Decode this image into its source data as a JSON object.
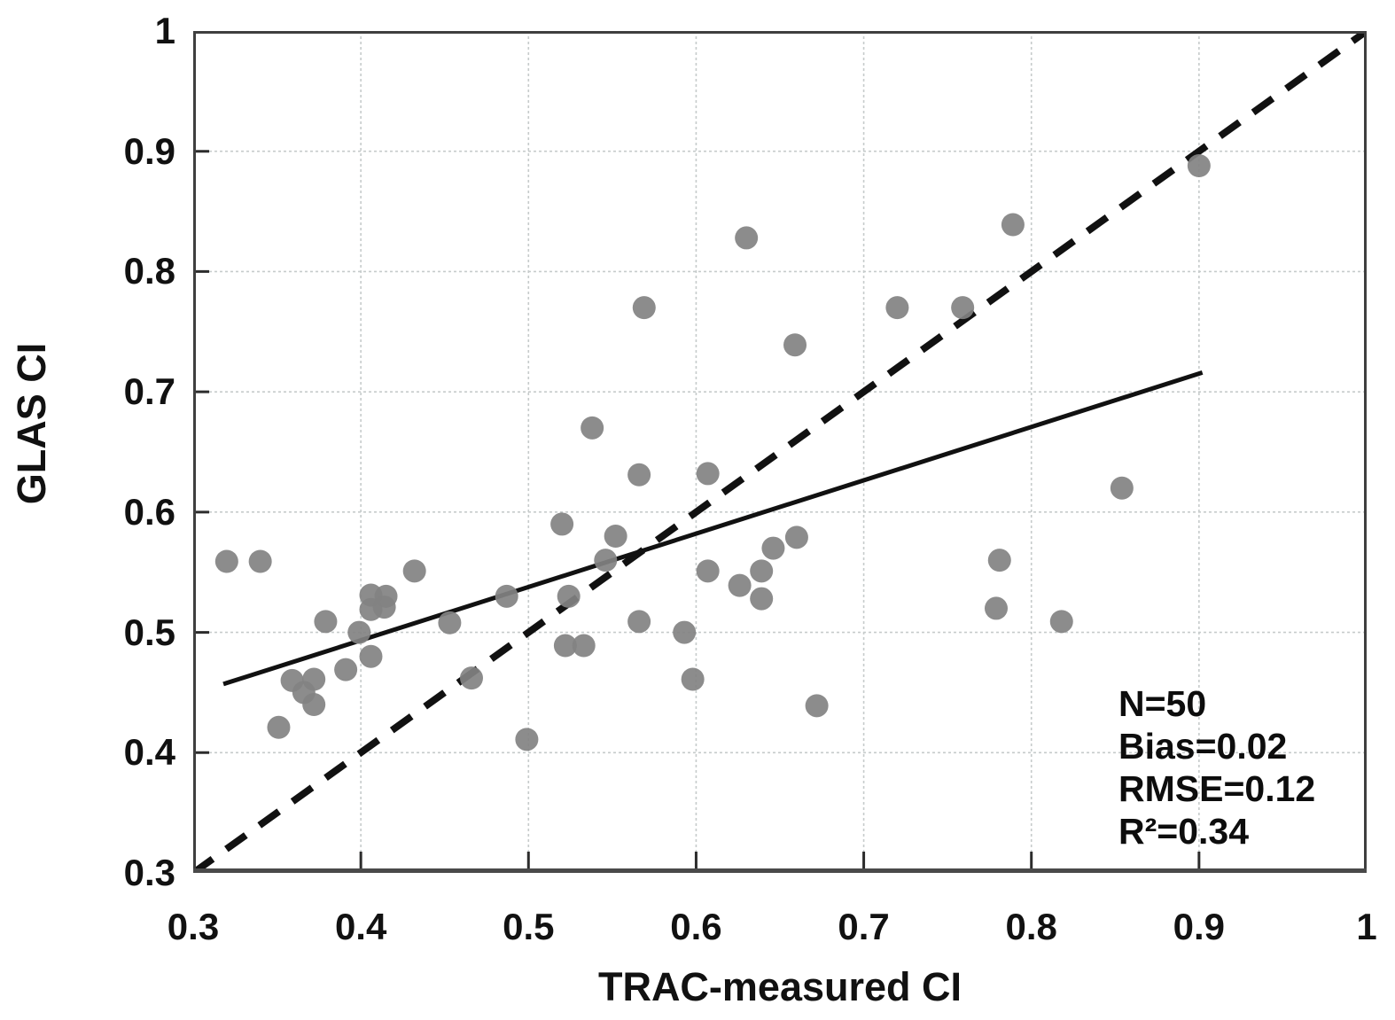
{
  "chart_data": {
    "type": "scatter",
    "xlabel": "TRAC-measured CI",
    "ylabel": "GLAS CI",
    "xlim": [
      0.3,
      1.0
    ],
    "ylim": [
      0.3,
      1.0
    ],
    "grid": true,
    "x_ticks": [
      0.3,
      0.4,
      0.5,
      0.6,
      0.7,
      0.8,
      0.9,
      1.0
    ],
    "x_tick_labels": [
      "0.3",
      "0.4",
      "0.5",
      "0.6",
      "0.7",
      "0.8",
      "0.9",
      "1"
    ],
    "y_ticks": [
      0.3,
      0.4,
      0.5,
      0.6,
      0.7,
      0.8,
      0.9,
      1.0
    ],
    "y_tick_labels": [
      "0.3",
      "0.4",
      "0.5",
      "0.6",
      "0.7",
      "0.8",
      "0.9",
      "1"
    ],
    "series": [
      {
        "name": "GLAS CI vs TRAC-measured CI",
        "points": [
          [
            0.32,
            0.559
          ],
          [
            0.34,
            0.559
          ],
          [
            0.351,
            0.421
          ],
          [
            0.359,
            0.46
          ],
          [
            0.372,
            0.461
          ],
          [
            0.366,
            0.45
          ],
          [
            0.372,
            0.44
          ],
          [
            0.379,
            0.509
          ],
          [
            0.391,
            0.469
          ],
          [
            0.399,
            0.5
          ],
          [
            0.406,
            0.531
          ],
          [
            0.415,
            0.53
          ],
          [
            0.406,
            0.519
          ],
          [
            0.414,
            0.521
          ],
          [
            0.406,
            0.48
          ],
          [
            0.432,
            0.551
          ],
          [
            0.453,
            0.508
          ],
          [
            0.466,
            0.462
          ],
          [
            0.487,
            0.53
          ],
          [
            0.499,
            0.411
          ],
          [
            0.52,
            0.59
          ],
          [
            0.524,
            0.53
          ],
          [
            0.522,
            0.489
          ],
          [
            0.533,
            0.489
          ],
          [
            0.538,
            0.67
          ],
          [
            0.552,
            0.58
          ],
          [
            0.546,
            0.56
          ],
          [
            0.569,
            0.77
          ],
          [
            0.566,
            0.631
          ],
          [
            0.566,
            0.509
          ],
          [
            0.593,
            0.5
          ],
          [
            0.598,
            0.461
          ],
          [
            0.607,
            0.632
          ],
          [
            0.607,
            0.551
          ],
          [
            0.63,
            0.828
          ],
          [
            0.626,
            0.539
          ],
          [
            0.639,
            0.551
          ],
          [
            0.639,
            0.528
          ],
          [
            0.646,
            0.57
          ],
          [
            0.659,
            0.739
          ],
          [
            0.66,
            0.579
          ],
          [
            0.672,
            0.439
          ],
          [
            0.72,
            0.77
          ],
          [
            0.759,
            0.77
          ],
          [
            0.781,
            0.56
          ],
          [
            0.779,
            0.52
          ],
          [
            0.789,
            0.839
          ],
          [
            0.818,
            0.509
          ],
          [
            0.854,
            0.62
          ],
          [
            0.9,
            0.888
          ]
        ]
      }
    ],
    "identity_line": {
      "style": "dashed",
      "x1": 0.3,
      "y1": 0.3,
      "x2": 1.0,
      "y2": 1.0
    },
    "trend_line": {
      "style": "solid",
      "x1": 0.318,
      "y1": 0.457,
      "x2": 0.902,
      "y2": 0.716
    },
    "annotation": {
      "lines": [
        "N=50",
        "Bias=0.02",
        "RMSE=0.12",
        "R²=0.34"
      ]
    },
    "colors": {
      "point": "#828282",
      "line": "#111111",
      "grid": "#c6cbcb",
      "axis_box": "#3f3f3f",
      "text": "#111111",
      "background": "#ffffff"
    }
  }
}
